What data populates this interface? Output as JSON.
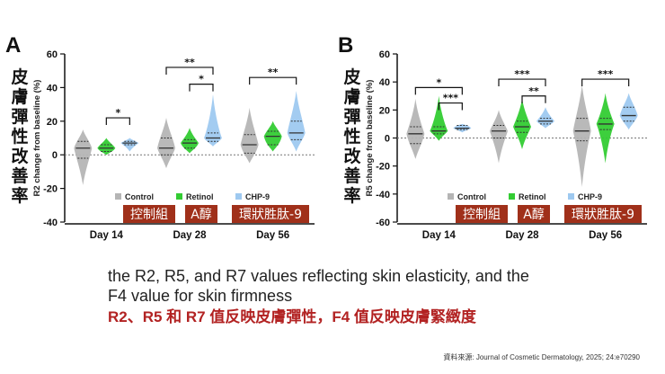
{
  "captions": {
    "en_line1": "the R2, R5, and R7 values reflecting skin elasticity, and the",
    "en_line2": "F4 value for skin firmness",
    "zh": "R2、R5 和 R7 值反映皮膚彈性，F4 值反映皮膚緊緻度",
    "source": "資料來源: Journal of Cosmetic Dermatology, 2025; 24:e70290"
  },
  "colors": {
    "control": "#b5b5b5",
    "retinol": "#33cc33",
    "chp9": "#9ec9f0",
    "label_bg": "#a0301a"
  },
  "chart_data": [
    {
      "type": "violin",
      "panel_letter": "A",
      "side_label": "皮膚彈性改善率",
      "ylabel": "R2 change from baseline (%)",
      "ylim": [
        -40,
        60
      ],
      "yticks": [
        "-40",
        "-20",
        "0",
        "20",
        "40",
        "60"
      ],
      "categories": [
        "Day 14",
        "Day 28",
        "Day 56"
      ],
      "legend": [
        "Control",
        "Retinol",
        "CHP-9"
      ],
      "group_labels": [
        "控制組",
        "A醇",
        "環狀胜肽-9"
      ],
      "series": [
        {
          "name": "Control",
          "medians": [
            4,
            4,
            6
          ],
          "q1": [
            -2,
            0,
            1
          ],
          "q3": [
            8,
            10,
            12
          ],
          "min": [
            -18,
            -8,
            -5
          ],
          "max": [
            15,
            22,
            28
          ]
        },
        {
          "name": "Retinol",
          "medians": [
            4,
            7,
            11
          ],
          "q1": [
            2,
            4,
            6
          ],
          "q3": [
            6,
            9,
            14
          ],
          "min": [
            0,
            1,
            2
          ],
          "max": [
            10,
            16,
            20
          ]
        },
        {
          "name": "CHP-9",
          "medians": [
            7,
            10,
            13
          ],
          "q1": [
            6,
            8,
            9
          ],
          "q3": [
            8,
            13,
            20
          ],
          "min": [
            2,
            5,
            2
          ],
          "max": [
            10,
            36,
            38
          ]
        }
      ],
      "significance": [
        {
          "from": "Retinol",
          "to": "CHP-9",
          "category": "Day 14",
          "label": "*",
          "y": 22
        },
        {
          "from": "Control",
          "to": "CHP-9",
          "category": "Day 28",
          "label": "**",
          "y": 52
        },
        {
          "from": "Retinol",
          "to": "CHP-9",
          "category": "Day 28",
          "label": "*",
          "y": 42
        },
        {
          "from": "Control",
          "to": "CHP-9",
          "category": "Day 56",
          "label": "**",
          "y": 46
        }
      ]
    },
    {
      "type": "violin",
      "panel_letter": "B",
      "side_label": "皮膚彈性改善率",
      "ylabel": "R5 change from baseline (%)",
      "ylim": [
        -60,
        60
      ],
      "yticks": [
        "-60",
        "-40",
        "-20",
        "0",
        "20",
        "40",
        "60"
      ],
      "categories": [
        "Day 14",
        "Day 28",
        "Day 56"
      ],
      "legend": [
        "Control",
        "Retinol",
        "CHP-9"
      ],
      "group_labels": [
        "控制組",
        "A醇",
        "環狀胜肽-9"
      ],
      "series": [
        {
          "name": "Control",
          "medians": [
            3,
            5,
            5
          ],
          "q1": [
            -4,
            0,
            -2
          ],
          "q3": [
            8,
            9,
            14
          ],
          "min": [
            -15,
            -18,
            -35
          ],
          "max": [
            28,
            20,
            38
          ]
        },
        {
          "name": "Retinol",
          "medians": [
            5,
            8,
            10
          ],
          "q1": [
            3,
            4,
            6
          ],
          "q3": [
            8,
            12,
            14
          ],
          "min": [
            -2,
            -8,
            -18
          ],
          "max": [
            30,
            28,
            32
          ]
        },
        {
          "name": "CHP-9",
          "medians": [
            7,
            12,
            16
          ],
          "q1": [
            6,
            10,
            12
          ],
          "q3": [
            9,
            14,
            22
          ],
          "min": [
            4,
            7,
            6
          ],
          "max": [
            10,
            22,
            32
          ]
        }
      ],
      "significance": [
        {
          "from": "Control",
          "to": "CHP-9",
          "category": "Day 14",
          "label": "*",
          "y": 36
        },
        {
          "from": "Retinol",
          "to": "CHP-9",
          "category": "Day 14",
          "label": "***",
          "y": 25
        },
        {
          "from": "Control",
          "to": "CHP-9",
          "category": "Day 28",
          "label": "***",
          "y": 42
        },
        {
          "from": "Retinol",
          "to": "CHP-9",
          "category": "Day 28",
          "label": "**",
          "y": 30
        },
        {
          "from": "Control",
          "to": "CHP-9",
          "category": "Day 56",
          "label": "***",
          "y": 42
        }
      ]
    }
  ]
}
